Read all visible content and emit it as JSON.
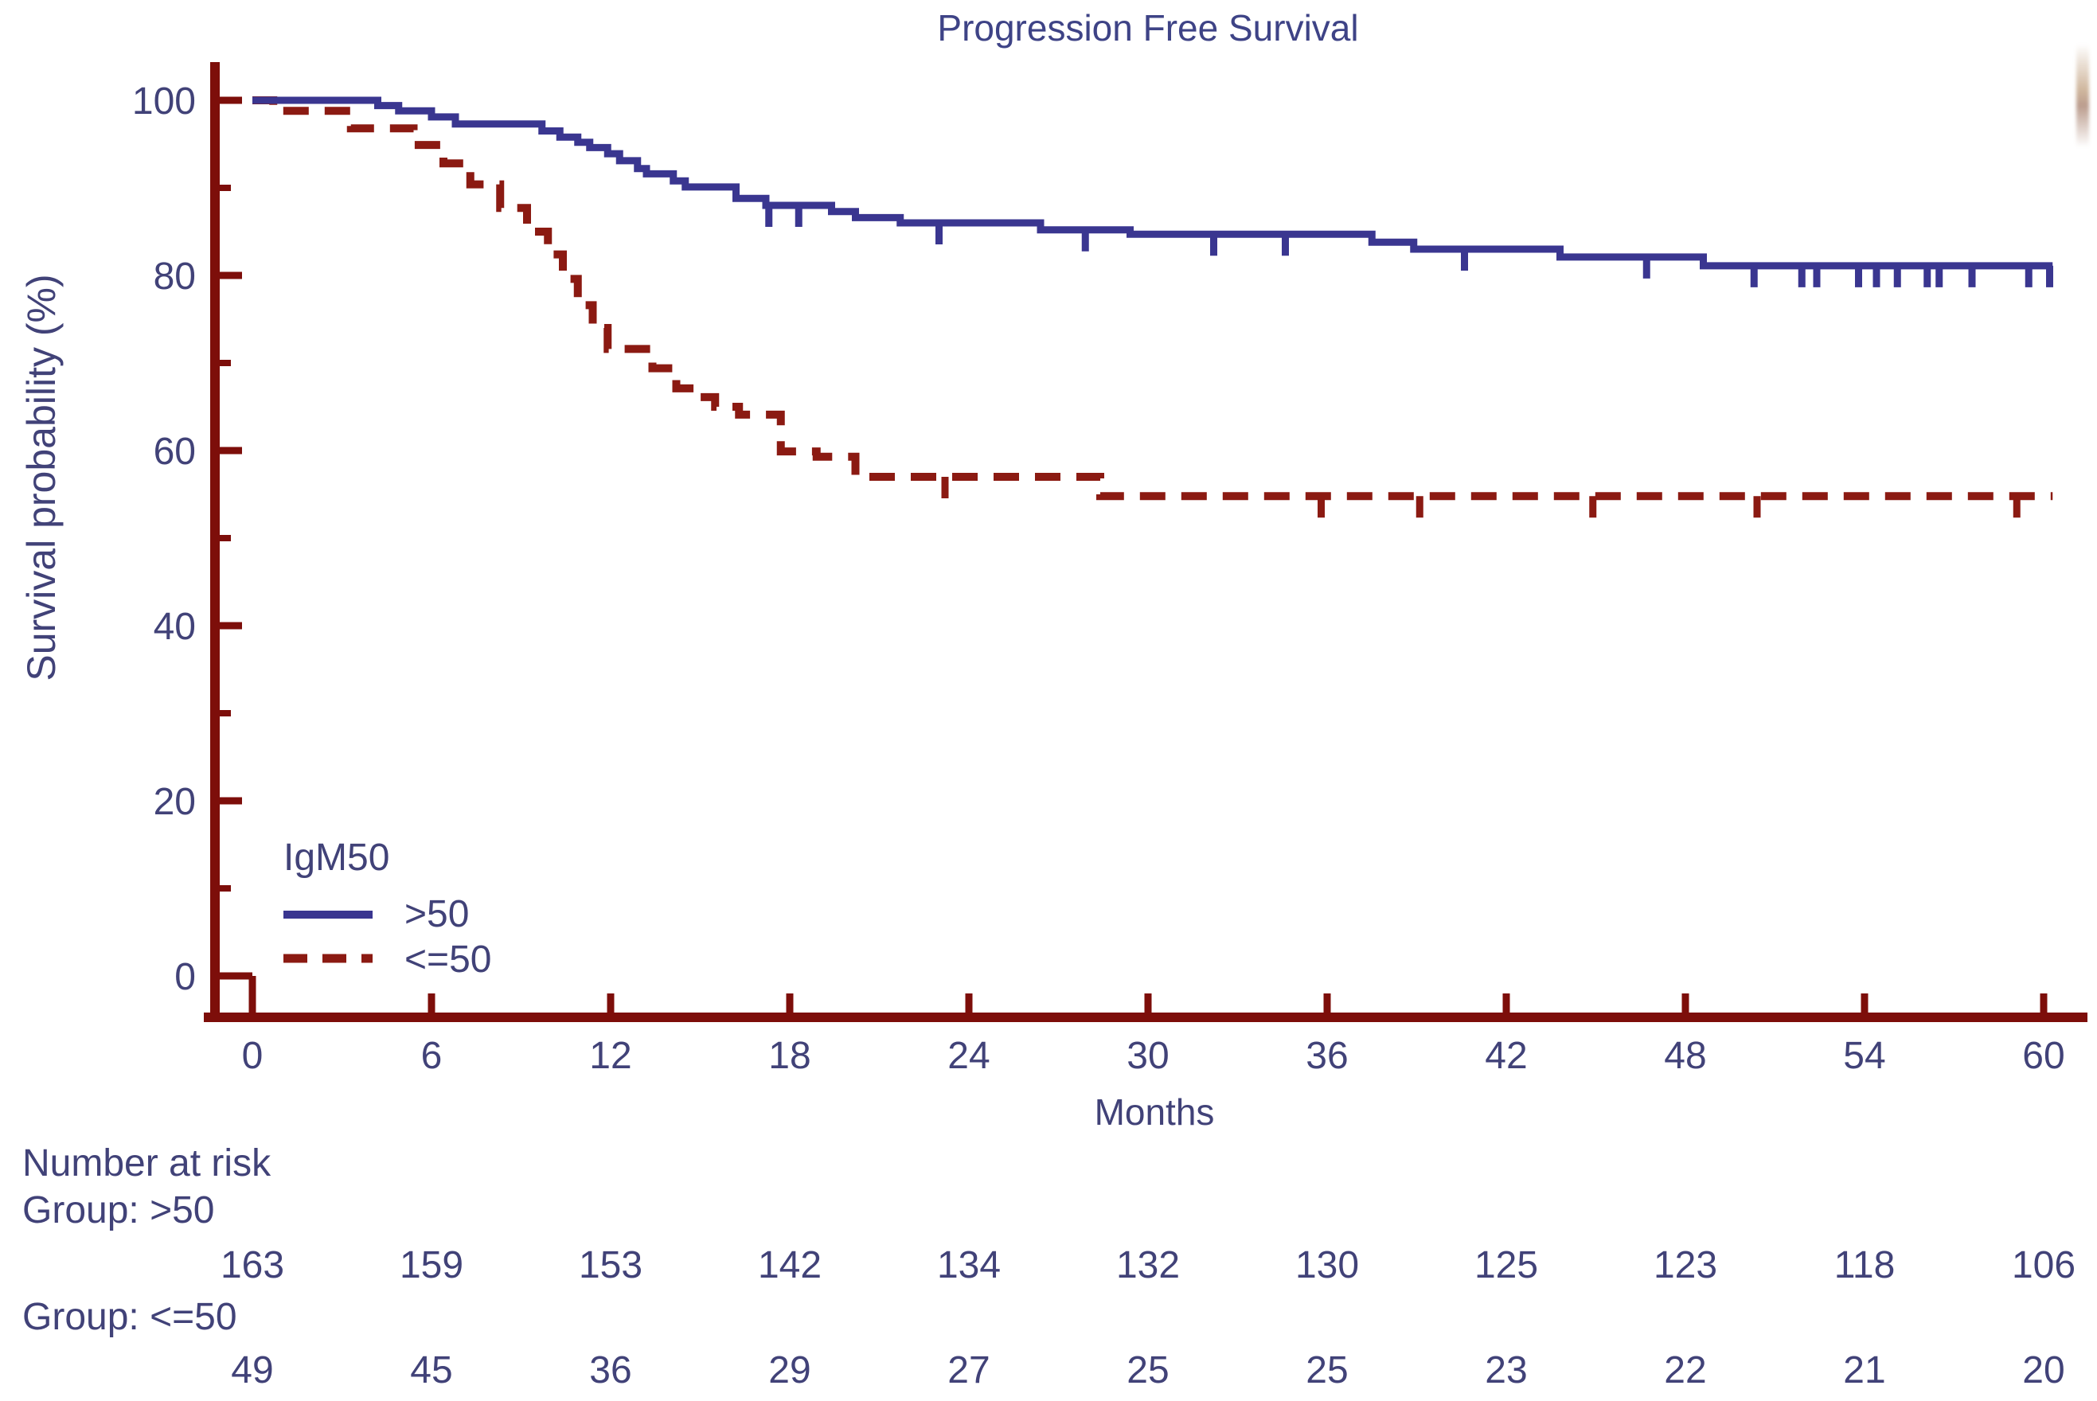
{
  "colors": {
    "blue_line": "#3a3690",
    "red_line": "#8b1a12",
    "axis": "#7d0e0a",
    "text": "#414278",
    "title_text": "#3e4386",
    "background": "#ffffff"
  },
  "chart_data": {
    "type": "line",
    "subtype": "kaplan-meier-step",
    "title": "Progression Free Survival",
    "xlabel": "Months",
    "ylabel": "Survival probability (%)",
    "xlim": [
      0,
      60
    ],
    "ylim": [
      0,
      100
    ],
    "x_ticks": [
      0,
      6,
      12,
      18,
      24,
      30,
      36,
      42,
      48,
      54,
      60
    ],
    "y_major_ticks": [
      0,
      20,
      40,
      60,
      80,
      100
    ],
    "y_minor_ticks": [
      10,
      30,
      50,
      70,
      90
    ],
    "grid": false,
    "legend_position": "inside-lower-left",
    "series": [
      {
        "name": ">50",
        "line_style": "solid",
        "color": "#3a3690",
        "steps_pct": [
          [
            0,
            100
          ],
          [
            4.2,
            99.4
          ],
          [
            4.9,
            98.8
          ],
          [
            6.0,
            98.1
          ],
          [
            6.8,
            97.3
          ],
          [
            9.7,
            96.5
          ],
          [
            10.3,
            95.8
          ],
          [
            10.9,
            95.2
          ],
          [
            11.3,
            94.6
          ],
          [
            11.9,
            93.9
          ],
          [
            12.3,
            93.1
          ],
          [
            12.9,
            92.2
          ],
          [
            13.2,
            91.6
          ],
          [
            14.1,
            90.8
          ],
          [
            14.5,
            90.1
          ],
          [
            16.2,
            88.8
          ],
          [
            17.2,
            88.0
          ],
          [
            19.4,
            87.3
          ],
          [
            20.2,
            86.6
          ],
          [
            21.7,
            86.0
          ],
          [
            26.4,
            85.2
          ],
          [
            29.4,
            84.7
          ],
          [
            37.5,
            83.8
          ],
          [
            38.9,
            83.0
          ],
          [
            43.8,
            82.1
          ],
          [
            48.6,
            81.1
          ],
          [
            60.3,
            81.1
          ]
        ],
        "censor_marks_pct": [
          [
            17.3,
            88.0
          ],
          [
            18.3,
            88.0
          ],
          [
            23.0,
            86.0
          ],
          [
            27.9,
            85.2
          ],
          [
            32.2,
            84.7
          ],
          [
            34.6,
            84.7
          ],
          [
            40.6,
            83.0
          ],
          [
            46.7,
            82.1
          ],
          [
            50.3,
            81.1
          ],
          [
            51.9,
            81.1
          ],
          [
            52.4,
            81.1
          ],
          [
            53.8,
            81.1
          ],
          [
            54.4,
            81.1
          ],
          [
            55.1,
            81.1
          ],
          [
            56.1,
            81.1
          ],
          [
            56.5,
            81.1
          ],
          [
            57.6,
            81.1
          ],
          [
            59.5,
            81.1
          ],
          [
            60.2,
            81.1
          ]
        ]
      },
      {
        "name": "<=50",
        "line_style": "dashed",
        "color": "#8b1a12",
        "steps_pct": [
          [
            0,
            100
          ],
          [
            0.7,
            98.8
          ],
          [
            3.3,
            96.8
          ],
          [
            5.4,
            94.9
          ],
          [
            6.4,
            92.8
          ],
          [
            7.3,
            90.4
          ],
          [
            8.3,
            87.7
          ],
          [
            9.2,
            85.0
          ],
          [
            9.9,
            82.4
          ],
          [
            10.4,
            79.6
          ],
          [
            10.9,
            76.6
          ],
          [
            11.4,
            74.0
          ],
          [
            11.9,
            71.6
          ],
          [
            13.4,
            69.4
          ],
          [
            14.2,
            67.1
          ],
          [
            14.9,
            66.1
          ],
          [
            15.5,
            65.0
          ],
          [
            16.3,
            64.1
          ],
          [
            17.7,
            59.9
          ],
          [
            18.9,
            59.3
          ],
          [
            20.2,
            57.0
          ],
          [
            28.4,
            54.8
          ],
          [
            60.3,
            54.8
          ]
        ],
        "censor_marks_pct": [
          [
            23.2,
            57.0
          ],
          [
            35.8,
            54.8
          ],
          [
            39.1,
            54.8
          ],
          [
            44.9,
            54.8
          ],
          [
            50.4,
            54.8
          ],
          [
            59.1,
            54.8
          ]
        ]
      }
    ]
  },
  "legend": {
    "title": "IgM50",
    "entries": [
      {
        "label": ">50",
        "style": "solid"
      },
      {
        "label": "<=50",
        "style": "dashed"
      }
    ]
  },
  "risk_table": {
    "header": "Number at risk",
    "months": [
      0,
      6,
      12,
      18,
      24,
      30,
      36,
      42,
      48,
      54,
      60
    ],
    "groups": [
      {
        "label": "Group: >50",
        "values": [
          163,
          159,
          153,
          142,
          134,
          132,
          130,
          125,
          123,
          118,
          106
        ]
      },
      {
        "label": "Group: <=50",
        "values": [
          49,
          45,
          36,
          29,
          27,
          25,
          25,
          23,
          22,
          21,
          20
        ]
      }
    ]
  }
}
